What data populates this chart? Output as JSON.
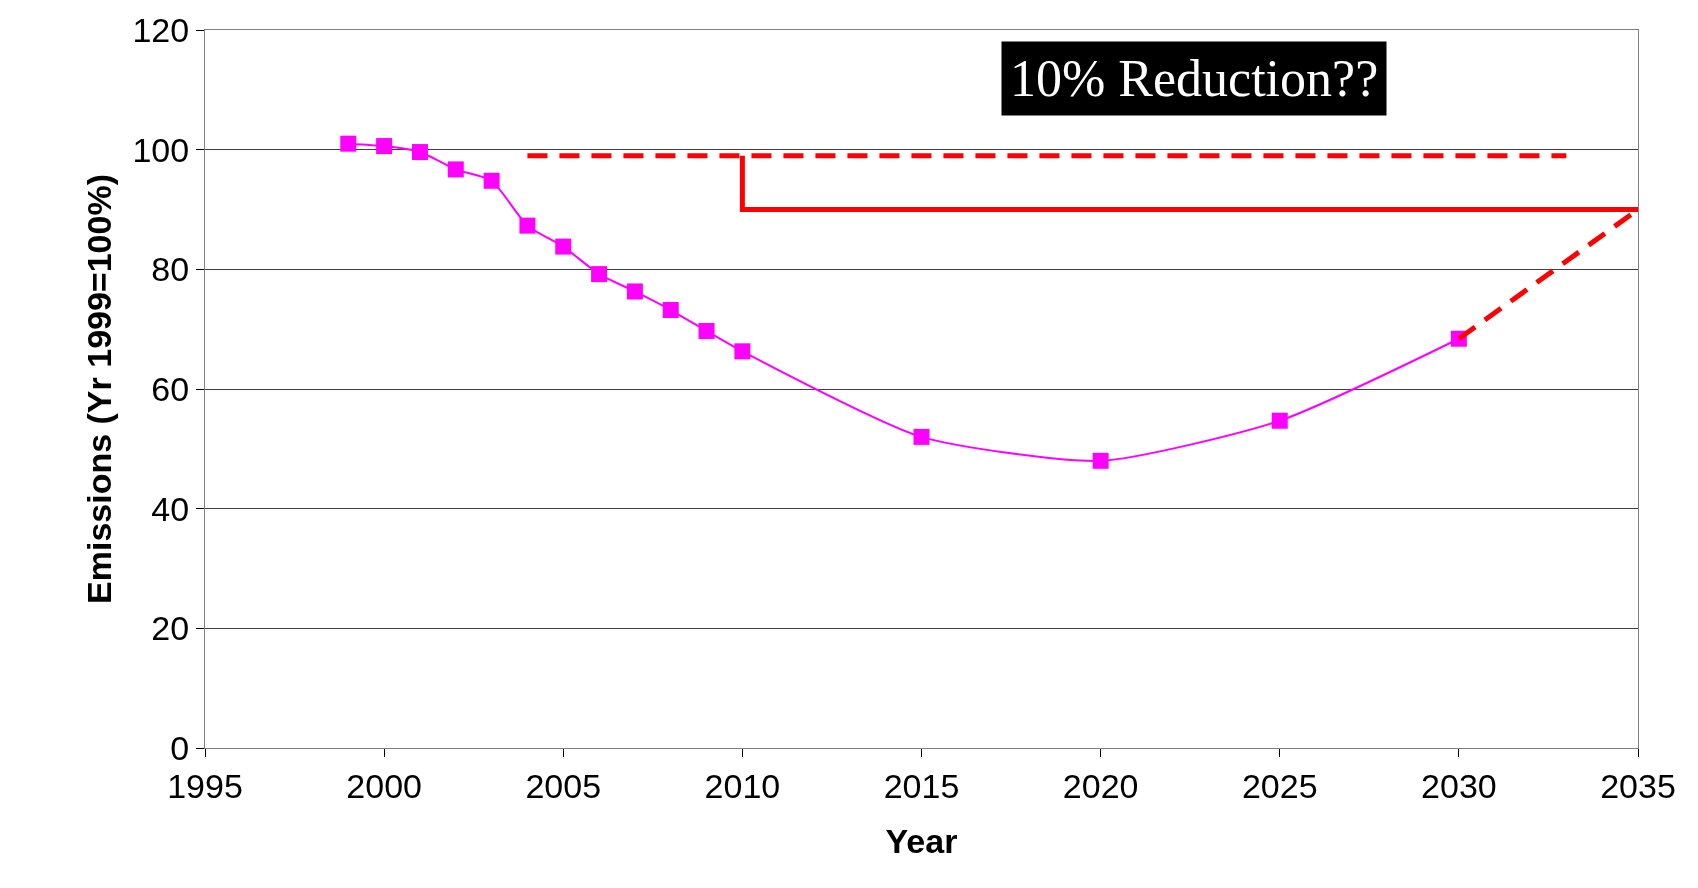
{
  "chart_data": {
    "type": "line",
    "xlabel": "Year",
    "ylabel": "Emissions (Yr 1999=100%)",
    "annotations": [
      "10% Reduction??"
    ],
    "series": [
      {
        "color": "#ff00ff",
        "marker": "square",
        "line_style": "solid",
        "x": [
          1999,
          2000,
          2001,
          2002,
          2003,
          2004,
          2005,
          2006,
          2007,
          2008,
          2009,
          2010,
          2015,
          2020,
          2025,
          2030
        ],
        "values": [
          101,
          100.6,
          99.6,
          96.7,
          94.8,
          87.3,
          83.8,
          79.2,
          76.3,
          73.2,
          69.7,
          66.3,
          52,
          48,
          54.7,
          68.4
        ]
      },
      {
        "color": "#ff0000",
        "marker": "none",
        "line_style": "dashed",
        "x": [
          2030,
          2035
        ],
        "values": [
          68.4,
          90
        ]
      },
      {
        "color": "#ff0000",
        "marker": "none",
        "line_style": "dashed",
        "x": [
          2004,
          2033
        ],
        "values": [
          99,
          99
        ]
      },
      {
        "color": "#ff0000",
        "marker": "none",
        "line_style": "solid",
        "x": [
          2010,
          2010,
          2035
        ],
        "values": [
          99,
          90,
          90
        ]
      }
    ],
    "xlim": [
      1995,
      2035
    ],
    "xticks": [
      1995,
      2000,
      2005,
      2010,
      2015,
      2020,
      2025,
      2030,
      2035
    ],
    "ylim": [
      0,
      120
    ],
    "yticks": [
      0,
      20,
      40,
      60,
      80,
      100,
      120
    ],
    "grid": "y"
  }
}
